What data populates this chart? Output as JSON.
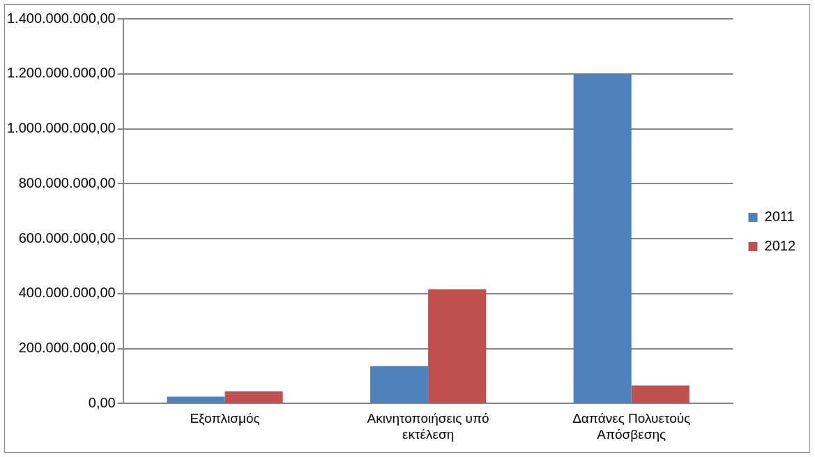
{
  "chart_data": {
    "type": "bar",
    "categories": [
      "Εξοπλισμός",
      "Ακινητοποιήσεις υπό εκτέλεση",
      "Δαπάνες Πολυετούς Απόσβεσης"
    ],
    "series": [
      {
        "name": "2011",
        "color": "#4f81bd",
        "values": [
          25000000,
          136000000,
          1198000000
        ]
      },
      {
        "name": "2012",
        "color": "#c0504d",
        "values": [
          44000000,
          416000000,
          66000000
        ]
      }
    ],
    "ylim": [
      0,
      1400000000
    ],
    "yticks": [
      {
        "value": 0,
        "label": "0,00"
      },
      {
        "value": 200000000,
        "label": "200.000.000,00"
      },
      {
        "value": 400000000,
        "label": "400.000.000,00"
      },
      {
        "value": 600000000,
        "label": "600.000.000,00"
      },
      {
        "value": 800000000,
        "label": "800.000.000,00"
      },
      {
        "value": 1000000000,
        "label": "1.000.000.000,00"
      },
      {
        "value": 1200000000,
        "label": "1.200.000.000,00"
      },
      {
        "value": 1400000000,
        "label": "1.400.000.000,00"
      }
    ],
    "grid": "y",
    "legend": "right"
  }
}
